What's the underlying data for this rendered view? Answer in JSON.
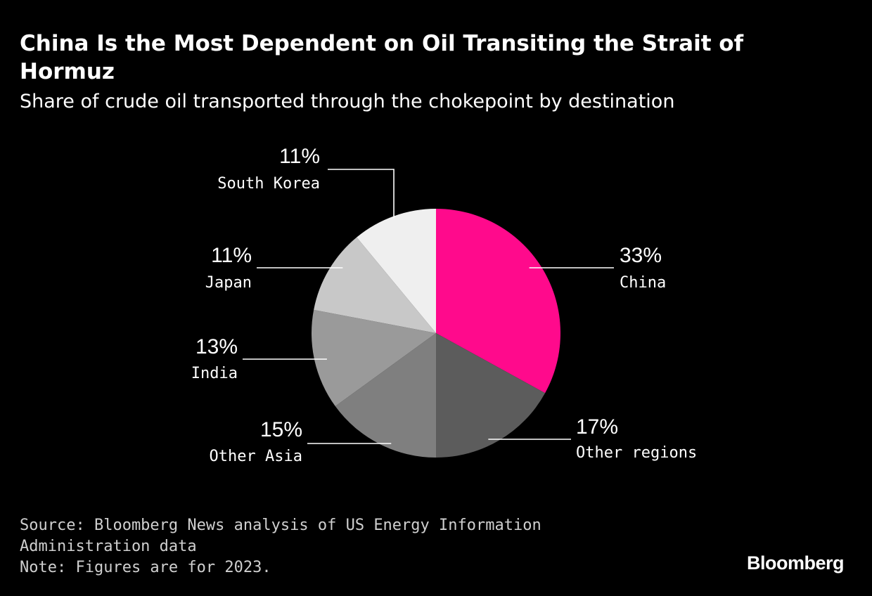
{
  "header": {
    "title": "China Is the Most Dependent on Oil Transiting the Strait of Hormuz",
    "subtitle": "Share of crude oil transported through the chokepoint by destination"
  },
  "chart_data": {
    "type": "pie",
    "unit": "%",
    "start": "12 o'clock",
    "direction": "clockwise",
    "slices": [
      {
        "label": "China",
        "value": 33,
        "value_label": "33%",
        "color": "#ff0a8c"
      },
      {
        "label": "Other regions",
        "value": 17,
        "value_label": "17%",
        "color": "#5c5c5c"
      },
      {
        "label": "Other Asia",
        "value": 15,
        "value_label": "15%",
        "color": "#7f7f7f"
      },
      {
        "label": "India",
        "value": 13,
        "value_label": "13%",
        "color": "#9a9a9a"
      },
      {
        "label": "Japan",
        "value": 11,
        "value_label": "11%",
        "color": "#c8c8c8"
      },
      {
        "label": "South Korea",
        "value": 11,
        "value_label": "11%",
        "color": "#efefef"
      }
    ]
  },
  "footer": {
    "source_line1": "Source: Bloomberg News analysis of US Energy Information",
    "source_line2": "Administration data",
    "note": "Note: Figures are for 2023."
  },
  "brand": {
    "logo_text": "Bloomberg"
  }
}
